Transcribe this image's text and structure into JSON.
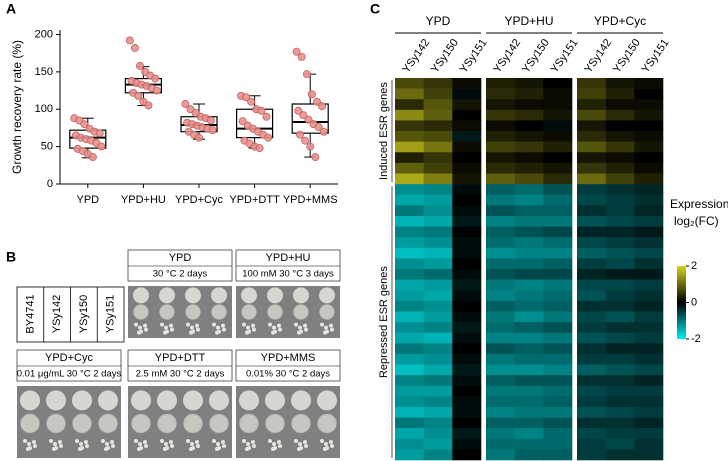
{
  "panel_labels": [
    "A",
    "B",
    "C"
  ],
  "chart_data": [
    {
      "type": "box",
      "ylabel": "Growth recovery rate (%)",
      "categories": [
        "YPD",
        "YPD+HU",
        "YPD+Cyc",
        "YPD+DTT",
        "YPD+MMS"
      ],
      "ylim": [
        0,
        206
      ],
      "yticks": [
        0,
        50,
        100,
        150,
        200
      ],
      "box_color": "#000000",
      "point_color": "#e8908c",
      "boxes": [
        {
          "q1": 48,
          "median": 62,
          "q3": 72,
          "whislo": 35,
          "whishi": 88
        },
        {
          "q1": 122,
          "median": 133,
          "q3": 141,
          "whislo": 105,
          "whishi": 157
        },
        {
          "q1": 70,
          "median": 79,
          "q3": 90,
          "whislo": 60,
          "whishi": 107
        },
        {
          "q1": 62,
          "median": 74,
          "q3": 100,
          "whislo": 48,
          "whishi": 118
        },
        {
          "q1": 68,
          "median": 83,
          "q3": 107,
          "whislo": 36,
          "whishi": 147
        }
      ],
      "points": [
        [
          88,
          85,
          80,
          74,
          70,
          68,
          65,
          62,
          60,
          58,
          55,
          50,
          47,
          44,
          40,
          36
        ],
        [
          192,
          182,
          158,
          150,
          145,
          141,
          138,
          135,
          133,
          131,
          128,
          125,
          122,
          118,
          110,
          105
        ],
        [
          107,
          100,
          95,
          90,
          88,
          85,
          82,
          80,
          78,
          76,
          74,
          72,
          70,
          66,
          62
        ],
        [
          118,
          116,
          110,
          100,
          98,
          90,
          84,
          78,
          74,
          70,
          66,
          62,
          58,
          54,
          50,
          48
        ],
        [
          177,
          170,
          147,
          120,
          110,
          104,
          98,
          92,
          86,
          80,
          76,
          70,
          66,
          58,
          50,
          36
        ]
      ]
    },
    {
      "type": "heatmap",
      "colorbar_label": "Expression",
      "colorbar_unit": "log₂(FC)",
      "clim": [
        -2,
        2
      ],
      "colorbar_ticks": [
        2,
        0,
        -2
      ],
      "colors": {
        "low": "#00eef2",
        "mid": "#000000",
        "high": "#d6d41e"
      },
      "column_groups": [
        {
          "name": "YPD",
          "columns": [
            "YSy142",
            "YSy150",
            "YSy151"
          ]
        },
        {
          "name": "YPD+HU",
          "columns": [
            "YSy142",
            "YSy150",
            "YSy151"
          ]
        },
        {
          "name": "YPD+Cyc",
          "columns": [
            "YSy142",
            "YSy150",
            "YSy151"
          ]
        }
      ],
      "groups": [
        {
          "name": "Induced ESR genes",
          "z": [
            [
              0.7,
              0.5,
              0.1,
              0.3,
              0.2,
              0.0,
              0.5,
              0.2,
              0.1
            ],
            [
              1.0,
              0.6,
              -0.1,
              0.4,
              0.3,
              0.1,
              0.6,
              0.3,
              0.0
            ],
            [
              0.4,
              0.8,
              0.2,
              0.2,
              0.1,
              0.1,
              0.3,
              0.1,
              0.1
            ],
            [
              1.3,
              0.9,
              0.0,
              0.5,
              0.4,
              0.2,
              0.7,
              0.4,
              0.2
            ],
            [
              0.5,
              0.4,
              0.1,
              0.1,
              0.0,
              -0.1,
              0.2,
              0.0,
              0.0
            ],
            [
              0.8,
              0.7,
              -0.2,
              0.3,
              0.2,
              0.1,
              0.4,
              0.2,
              0.1
            ],
            [
              1.5,
              1.1,
              0.1,
              0.6,
              0.5,
              0.3,
              0.8,
              0.5,
              0.2
            ],
            [
              0.3,
              0.5,
              0.0,
              0.2,
              0.1,
              0.0,
              0.2,
              0.1,
              0.0
            ],
            [
              0.9,
              0.6,
              0.1,
              0.4,
              0.3,
              0.2,
              0.5,
              0.3,
              0.1
            ],
            [
              1.6,
              1.2,
              0.2,
              0.9,
              0.7,
              0.4,
              1.0,
              0.6,
              0.3
            ]
          ]
        },
        {
          "name": "Repressed ESR genes",
          "z": [
            [
              -1.2,
              -1.1,
              -0.1,
              -0.8,
              -0.9,
              -0.7,
              -0.5,
              -0.4,
              -0.3
            ],
            [
              -1.4,
              -1.3,
              0.0,
              -1.0,
              -1.1,
              -0.9,
              -0.6,
              -0.5,
              -0.4
            ],
            [
              -1.0,
              -1.2,
              -0.1,
              -0.7,
              -0.8,
              -0.8,
              -0.4,
              -0.5,
              -0.3
            ],
            [
              -1.5,
              -1.4,
              -0.2,
              -1.1,
              -1.0,
              -1.0,
              -0.7,
              -0.6,
              -0.5
            ],
            [
              -1.1,
              -1.0,
              0.0,
              -0.8,
              -0.7,
              -0.6,
              -0.3,
              -0.3,
              -0.2
            ],
            [
              -1.3,
              -1.2,
              -0.1,
              -0.9,
              -1.0,
              -0.9,
              -0.6,
              -0.5,
              -0.4
            ],
            [
              -1.6,
              -1.5,
              -0.1,
              -1.2,
              -1.1,
              -1.1,
              -0.8,
              -0.7,
              -0.6
            ],
            [
              -1.2,
              -1.3,
              0.0,
              -0.9,
              -0.9,
              -0.8,
              -0.5,
              -0.6,
              -0.4
            ],
            [
              -1.0,
              -0.9,
              -0.1,
              -0.7,
              -0.6,
              -0.6,
              -0.3,
              -0.2,
              -0.2
            ],
            [
              -1.4,
              -1.3,
              -0.2,
              -1.0,
              -1.1,
              -1.0,
              -0.6,
              -0.6,
              -0.5
            ],
            [
              -1.3,
              -1.4,
              -0.1,
              -1.1,
              -1.0,
              -0.9,
              -0.7,
              -0.5,
              -0.4
            ],
            [
              -1.1,
              -1.2,
              0.0,
              -0.8,
              -0.9,
              -0.8,
              -0.4,
              -0.4,
              -0.3
            ],
            [
              -1.5,
              -1.3,
              -0.1,
              -1.0,
              -1.2,
              -1.0,
              -0.6,
              -0.7,
              -0.5
            ],
            [
              -1.2,
              -1.1,
              -0.2,
              -0.9,
              -0.8,
              -0.7,
              -0.5,
              -0.4,
              -0.4
            ],
            [
              -1.4,
              -1.5,
              -0.1,
              -1.1,
              -1.1,
              -1.0,
              -0.7,
              -0.6,
              -0.5
            ],
            [
              -1.0,
              -1.1,
              0.0,
              -0.7,
              -0.8,
              -0.7,
              -0.4,
              -0.3,
              -0.3
            ],
            [
              -1.3,
              -1.2,
              -0.1,
              -1.0,
              -0.9,
              -0.9,
              -0.5,
              -0.5,
              -0.4
            ],
            [
              -1.6,
              -1.4,
              -0.2,
              -1.2,
              -1.2,
              -1.1,
              -0.8,
              -0.7,
              -0.6
            ],
            [
              -1.1,
              -1.0,
              -0.1,
              -0.8,
              -0.7,
              -0.7,
              -0.4,
              -0.4,
              -0.3
            ],
            [
              -1.3,
              -1.3,
              0.0,
              -1.0,
              -1.0,
              -0.9,
              -0.6,
              -0.5,
              -0.5
            ],
            [
              -1.2,
              -1.1,
              -0.1,
              -0.9,
              -0.9,
              -0.8,
              -0.5,
              -0.4,
              -0.4
            ],
            [
              -1.5,
              -1.4,
              -0.1,
              -1.1,
              -1.0,
              -1.0,
              -0.7,
              -0.6,
              -0.5
            ],
            [
              -1.0,
              -1.1,
              0.0,
              -0.8,
              -0.8,
              -0.7,
              -0.4,
              -0.4,
              -0.3
            ],
            [
              -1.4,
              -1.2,
              -0.2,
              -1.0,
              -1.1,
              -0.9,
              -0.6,
              -0.5,
              -0.5
            ],
            [
              -1.2,
              -1.3,
              -0.1,
              -0.9,
              -0.9,
              -0.9,
              -0.5,
              -0.6,
              -0.4
            ],
            [
              -1.3,
              -1.1,
              0.0,
              -1.0,
              -0.8,
              -0.8,
              -0.5,
              -0.4,
              -0.4
            ]
          ]
        }
      ]
    }
  ],
  "panel_b": {
    "strains": [
      "BY4741",
      "YSy142",
      "YSy150",
      "YSy151"
    ],
    "plates": [
      {
        "condition": "YPD",
        "detail": "30 °C 2 days"
      },
      {
        "condition": "YPD+HU",
        "detail": "100 mM 30 °C 3 days"
      },
      {
        "condition": "YPD+Cyc",
        "detail": "0.01 μg/mL 30 °C 2 days"
      },
      {
        "condition": "YPD+DTT",
        "detail": "2.5 mM 30 °C 2 days"
      },
      {
        "condition": "YPD+MMS",
        "detail": "0.01% 30 °C 2 days"
      }
    ]
  }
}
